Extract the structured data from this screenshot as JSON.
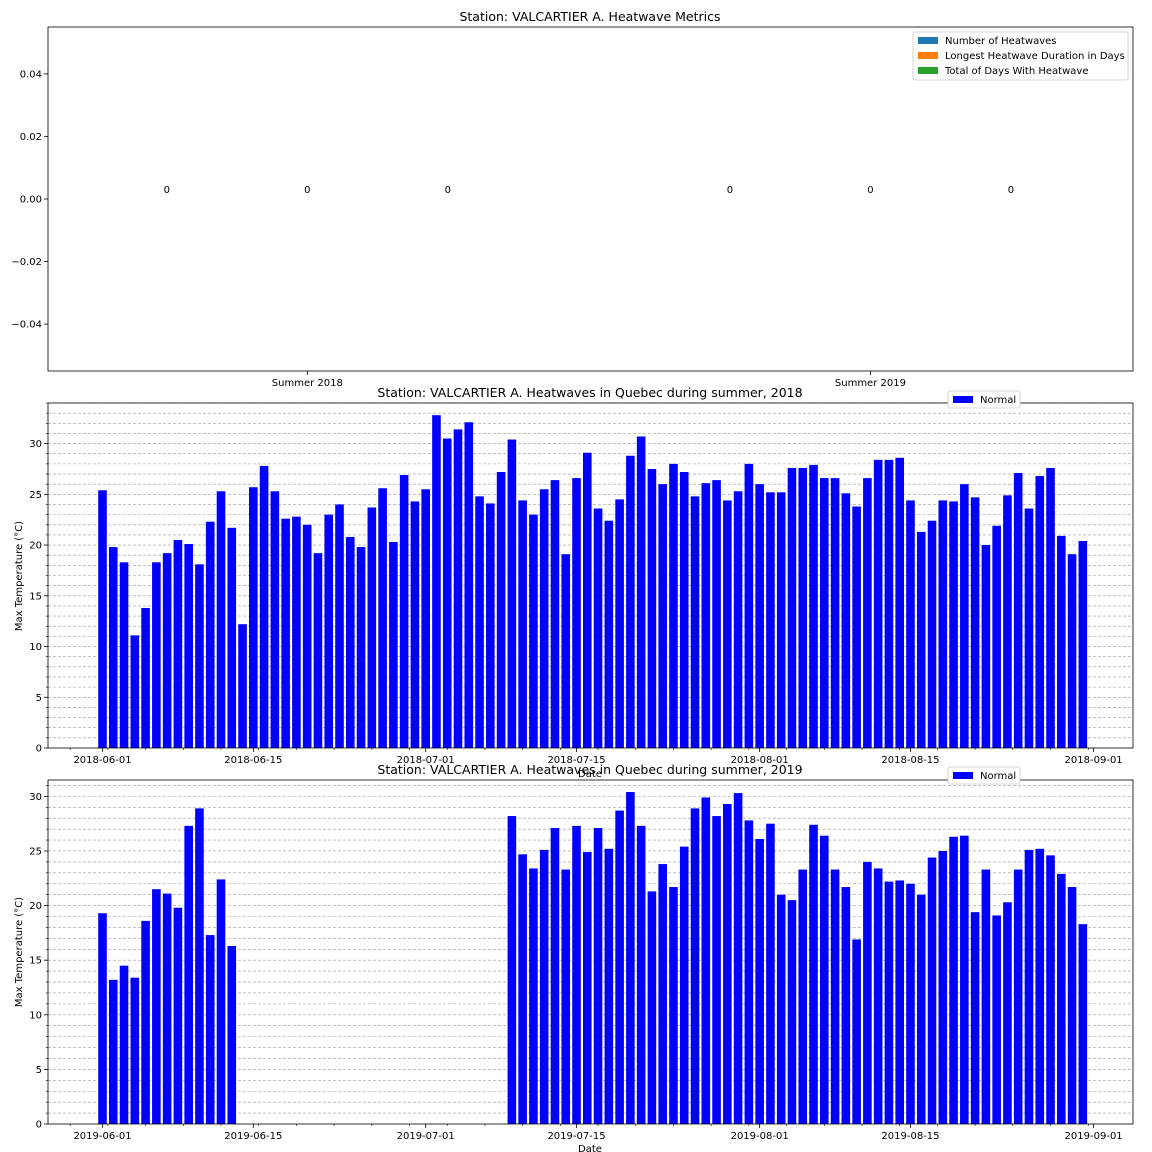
{
  "chart_data": [
    {
      "type": "bar",
      "title": "Station: VALCARTIER A. Heatwave Metrics",
      "categories": [
        "Summer 2018",
        "Summer 2019"
      ],
      "series": [
        {
          "name": "Number of Heatwaves",
          "values": [
            0,
            0
          ],
          "color": "#1f77b4"
        },
        {
          "name": "Longest Heatwave Duration in Days",
          "values": [
            0,
            0
          ],
          "color": "#ff7f0e"
        },
        {
          "name": "Total of Days With Heatwave",
          "values": [
            0,
            0
          ],
          "color": "#2ca02c"
        }
      ],
      "data_labels": [
        "0",
        "0",
        "0",
        "0",
        "0",
        "0"
      ],
      "ylim": [
        -0.055,
        0.055
      ],
      "yticks": [
        -0.04,
        -0.02,
        0.0,
        0.02,
        0.04
      ],
      "ytick_labels": [
        "−0.04",
        "−0.02",
        "0.00",
        "0.02",
        "0.04"
      ],
      "legend": "top-right"
    },
    {
      "type": "bar",
      "title": "Station: VALCARTIER A. Heatwaves in Quebec during summer, 2018",
      "xlabel": "Date",
      "ylabel": "Max Temperature (°C)",
      "x_start": "2018-06-01",
      "ylim": [
        0,
        34
      ],
      "yticks": [
        0,
        5,
        10,
        15,
        20,
        25,
        30
      ],
      "ytick_labels": [
        "0",
        "5",
        "10",
        "15",
        "20",
        "25",
        "30"
      ],
      "xtick_labels": [
        "2018-06-01",
        "2018-06-15",
        "2018-07-01",
        "2018-07-15",
        "2018-08-01",
        "2018-08-15",
        "2018-09-01"
      ],
      "grid": "horizontal minor dashed",
      "legend": "top-right",
      "series": [
        {
          "name": "Normal",
          "color": "#0000ff",
          "values": [
            25.4,
            19.8,
            18.3,
            11.1,
            13.8,
            18.3,
            19.2,
            20.5,
            20.1,
            18.1,
            22.3,
            25.3,
            21.7,
            12.2,
            25.7,
            27.8,
            25.3,
            22.6,
            22.8,
            22.0,
            19.2,
            23.0,
            24.0,
            20.8,
            19.8,
            23.7,
            25.6,
            20.3,
            26.9,
            24.3,
            25.5,
            32.8,
            30.5,
            31.4,
            32.1,
            24.8,
            24.1,
            27.2,
            30.4,
            24.4,
            23.0,
            25.5,
            26.4,
            19.1,
            26.6,
            29.1,
            23.6,
            22.4,
            24.5,
            28.8,
            30.7,
            27.5,
            26.0,
            28.0,
            27.2,
            24.8,
            26.1,
            26.4,
            24.4,
            25.3,
            28.0,
            26.0,
            25.2,
            25.2,
            27.6,
            27.6,
            27.9,
            26.6,
            26.6,
            25.1,
            23.8,
            26.6,
            28.4,
            28.4,
            28.6,
            24.4,
            21.3,
            22.4,
            24.4,
            24.3,
            26.0,
            24.7,
            20.0,
            21.9,
            24.9,
            27.1,
            23.6,
            26.8,
            27.6,
            20.9,
            19.1,
            20.4
          ]
        }
      ]
    },
    {
      "type": "bar",
      "title": "Station: VALCARTIER A. Heatwaves in Quebec during summer, 2019",
      "xlabel": "Date",
      "ylabel": "Max Temperature (°C)",
      "x_start": "2019-06-01",
      "ylim": [
        0,
        31.5
      ],
      "yticks": [
        0,
        5,
        10,
        15,
        20,
        25,
        30
      ],
      "ytick_labels": [
        "0",
        "5",
        "10",
        "15",
        "20",
        "25",
        "30"
      ],
      "xtick_labels": [
        "2019-06-01",
        "2019-06-15",
        "2019-07-01",
        "2019-07-15",
        "2019-08-01",
        "2019-08-15",
        "2019-09-01"
      ],
      "grid": "horizontal minor dashed",
      "legend": "top-right",
      "series": [
        {
          "name": "Normal",
          "color": "#0000ff",
          "values": [
            19.3,
            13.2,
            14.5,
            13.4,
            18.6,
            21.5,
            21.1,
            19.8,
            27.3,
            28.9,
            17.3,
            22.4,
            16.3,
            null,
            null,
            null,
            null,
            null,
            null,
            null,
            null,
            null,
            null,
            null,
            null,
            null,
            null,
            null,
            null,
            null,
            null,
            null,
            null,
            null,
            null,
            null,
            null,
            null,
            28.2,
            24.7,
            23.4,
            25.1,
            27.1,
            23.3,
            27.3,
            24.9,
            27.1,
            25.2,
            28.7,
            30.4,
            27.3,
            21.3,
            23.8,
            21.7,
            25.4,
            28.9,
            29.9,
            28.2,
            29.3,
            30.3,
            27.8,
            26.1,
            27.5,
            21.0,
            20.5,
            23.3,
            27.4,
            26.4,
            23.3,
            21.7,
            16.9,
            24.0,
            23.4,
            22.2,
            22.3,
            22.0,
            21.0,
            24.4,
            25.0,
            26.3,
            26.4,
            19.4,
            23.3,
            19.1,
            20.3,
            23.3,
            25.1,
            25.2,
            24.6,
            22.9,
            21.7,
            18.3
          ]
        }
      ]
    }
  ]
}
